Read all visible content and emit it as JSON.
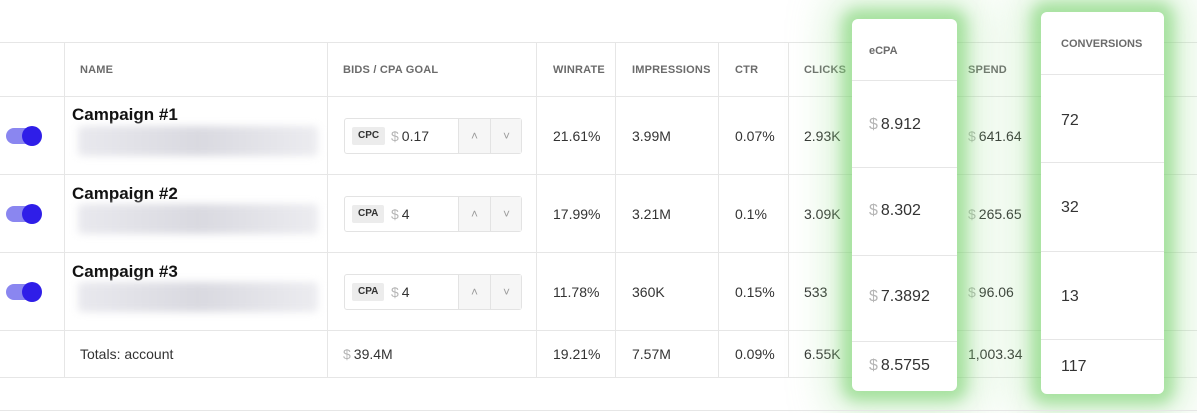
{
  "columns": {
    "name": "NAME",
    "bids": "BIDS / CPA GOAL",
    "winrate": "WINRATE",
    "impressions": "IMPRESSIONS",
    "ctr": "CTR",
    "clicks": "CLICKS",
    "ecpa": "eCPA",
    "spend": "SPEND",
    "conversions": "CONVERSIONS"
  },
  "currency_symbol": "$",
  "rows": [
    {
      "name": "Campaign #1",
      "enabled": true,
      "bid_type": "CPC",
      "bid_value": "0.17",
      "winrate": "21.61%",
      "impressions": "3.99M",
      "ctr": "0.07%",
      "clicks": "2.93K",
      "ecpa": "8.912",
      "spend": "641.64",
      "conversions": "72"
    },
    {
      "name": "Campaign #2",
      "enabled": true,
      "bid_type": "CPA",
      "bid_value": "4",
      "winrate": "17.99%",
      "impressions": "3.21M",
      "ctr": "0.1%",
      "clicks": "3.09K",
      "ecpa": "8.302",
      "spend": "265.65",
      "conversions": "32"
    },
    {
      "name": "Campaign #3",
      "enabled": true,
      "bid_type": "CPA",
      "bid_value": "4",
      "winrate": "11.78%",
      "impressions": "360K",
      "ctr": "0.15%",
      "clicks": "533",
      "ecpa": "7.3892",
      "spend": "96.06",
      "conversions": "13"
    }
  ],
  "totals": {
    "label": "Totals: account",
    "bids": "39.4M",
    "winrate": "19.21%",
    "impressions": "7.57M",
    "ctr": "0.09%",
    "clicks": "6.55K",
    "ecpa": "8.5755",
    "spend": "1,003.34",
    "conversions": "117"
  },
  "colors": {
    "toggle_on": "#2f1ee8",
    "highlight_glow": "#78d26e"
  },
  "icons": {
    "increment": "chevron-up-icon",
    "decrement": "chevron-down-icon"
  }
}
